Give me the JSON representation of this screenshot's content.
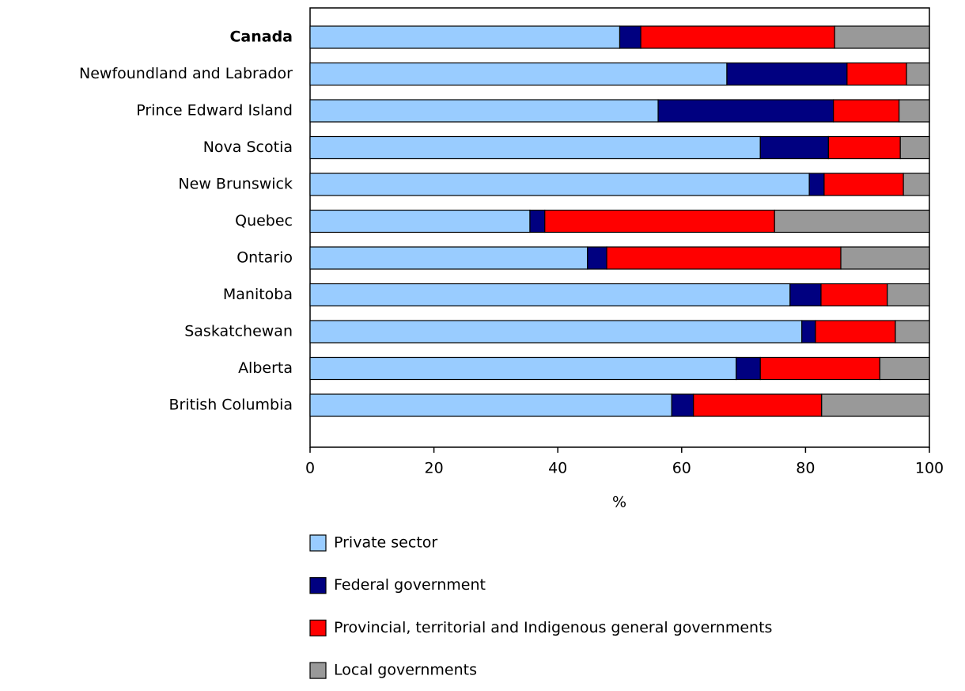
{
  "chart_data": {
    "type": "stacked-bar-horizontal",
    "xlabel": "%",
    "categories": [
      "Canada",
      "Newfoundland and Labrador",
      "Prince Edward Island",
      "Nova Scotia",
      "New Brunswick",
      "Quebec",
      "Ontario",
      "Manitoba",
      "Saskatchewan",
      "Alberta",
      "British Columbia"
    ],
    "series": [
      {
        "name": "Private sector",
        "color": "#99ccff",
        "values": [
          50.0,
          67.3,
          56.2,
          72.7,
          80.6,
          35.5,
          44.8,
          77.5,
          79.4,
          68.8,
          58.4
        ]
      },
      {
        "name": "Federal government",
        "color": "#000080",
        "values": [
          3.4,
          19.4,
          28.3,
          11.0,
          2.4,
          2.4,
          3.1,
          5.0,
          2.2,
          3.9,
          3.5
        ]
      },
      {
        "name": "Provincial, territorial and Indigenous general governments",
        "color": "#ff0000",
        "values": [
          31.3,
          9.6,
          10.6,
          11.6,
          12.8,
          37.1,
          37.8,
          10.7,
          12.9,
          19.3,
          20.7
        ]
      },
      {
        "name": "Local governments",
        "color": "#999999",
        "values": [
          15.3,
          3.7,
          4.9,
          4.7,
          4.2,
          25.0,
          14.3,
          6.8,
          5.5,
          8.0,
          17.4
        ]
      }
    ],
    "xlim": [
      0,
      100
    ],
    "xticks": [
      0,
      20,
      40,
      60,
      80,
      100
    ]
  }
}
